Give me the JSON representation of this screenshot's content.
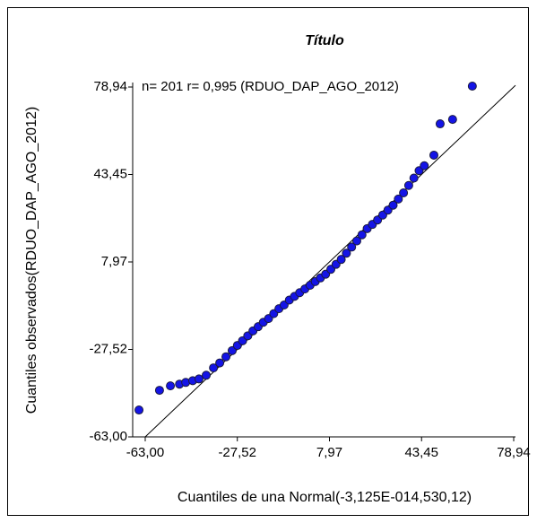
{
  "chart_data": {
    "type": "scatter",
    "title": "Título",
    "annotation": "n= 201 r= 0,995 (RDUO_DAP_AGO_2012)",
    "x_label": "Cuantiles de una Normal(-3,125E-014,530,12)",
    "y_label": "Cuantiles observados(RDUO_DAP_AGO_2012)",
    "color": "#1414e6",
    "x": [
      -65.4,
      -57.5,
      -53.3,
      -49.8,
      -47.4,
      -44.7,
      -42.3,
      -39.5,
      -36.7,
      -34.3,
      -31.9,
      -29.5,
      -27.5,
      -25.5,
      -23.5,
      -21.5,
      -19.5,
      -17.5,
      -15.5,
      -13.5,
      -11.5,
      -9.5,
      -7.5,
      -5.5,
      -3.5,
      -1.5,
      0.5,
      2.5,
      4.5,
      6.5,
      8.5,
      10.5,
      12.5,
      14.5,
      16.5,
      18.5,
      20.5,
      22.5,
      24.5,
      26.5,
      28.5,
      30.5,
      32.5,
      34.5,
      36.5,
      38.5,
      40.5,
      42.5,
      44.5,
      48.2,
      50.6,
      55.4,
      63.0
    ],
    "values": [
      -52.1,
      -44.1,
      -42.3,
      -41.6,
      -40.9,
      -40.2,
      -39.5,
      -38.0,
      -35.0,
      -33.0,
      -30.5,
      -28.0,
      -25.9,
      -24.0,
      -22.0,
      -20.0,
      -18.3,
      -16.5,
      -15.0,
      -13.0,
      -11.0,
      -9.5,
      -7.5,
      -6.0,
      -4.5,
      -3.0,
      -1.5,
      0,
      1.5,
      3.0,
      5.0,
      7.0,
      9.0,
      11.5,
      14.0,
      16.5,
      19.0,
      21.5,
      23.2,
      25.0,
      27.0,
      29.0,
      31.0,
      33.5,
      36.0,
      39.0,
      42.0,
      45.0,
      47.0,
      51.3,
      64.0,
      65.8,
      79.3
    ],
    "xlim": [
      -67.83,
      79.63
    ],
    "ylim": [
      -63,
      80.76
    ],
    "xticks": [
      {
        "value": -63,
        "label": "-63,00"
      },
      {
        "value": -27.52,
        "label": "-27,52"
      },
      {
        "value": 7.97,
        "label": "7,97"
      },
      {
        "value": 43.45,
        "label": "43,45"
      },
      {
        "value": 78.94,
        "label": "78,94"
      }
    ],
    "yticks": [
      {
        "value": -63,
        "label": "-63,00"
      },
      {
        "value": -27.52,
        "label": "-27,52"
      },
      {
        "value": 7.97,
        "label": "7,97"
      },
      {
        "value": 43.45,
        "label": "43,45"
      },
      {
        "value": 78.94,
        "label": "78,94"
      }
    ]
  }
}
